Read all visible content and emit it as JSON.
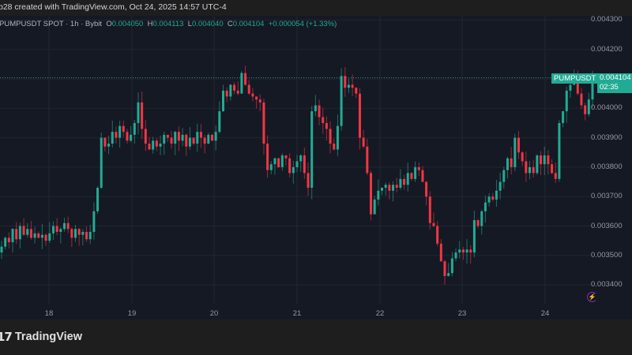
{
  "header": {
    "created_text": "b28 created with TradingView.com, Oct 24, 2025 14:57 UTC-4"
  },
  "legend": {
    "symbol_line": "PUMPUSDT SPOT · 1h · Bybit",
    "o_label": "O",
    "o_value": "0.004050",
    "h_label": "H",
    "h_value": "0.004113",
    "l_label": "L",
    "l_value": "0.004040",
    "c_label": "C",
    "c_value": "0.004104",
    "change": "+0.000054 (+1.33%)"
  },
  "price_tag": {
    "symbol": "PUMPUSDT",
    "price": "0.004104",
    "countdown": "02:35"
  },
  "footer": {
    "logo_mark": "17",
    "logo_text": "TradingView"
  },
  "colors": {
    "background": "#151924",
    "up": "#22ab94",
    "down": "#f23645",
    "grid": "#222631",
    "axis_text": "#9598a1",
    "accent_purple": "#9c27b0"
  },
  "chart_data": {
    "type": "candlestick",
    "title": "PUMPUSDT SPOT · 1h · Bybit",
    "xlabel": "",
    "ylabel": "",
    "x_ticks": [
      "18",
      "19",
      "20",
      "21",
      "22",
      "23",
      "24"
    ],
    "y_ticks": [
      "0.004300",
      "0.004200",
      "0.004100",
      "0.004000",
      "0.003900",
      "0.003800",
      "0.003700",
      "0.003600",
      "0.003500",
      "0.003400"
    ],
    "ylim": [
      0.00331,
      0.00436
    ],
    "grid": true,
    "last_price": 0.004104,
    "closes_approx": [
      0.00353,
      0.00356,
      0.003545,
      0.00359,
      0.003555,
      0.0036,
      0.00357,
      0.00359,
      0.00356,
      0.003575,
      0.00356,
      0.00357,
      0.00355,
      0.003575,
      0.0036,
      0.00358,
      0.00359,
      0.00361,
      0.00359,
      0.00356,
      0.00359,
      0.00357,
      0.00358,
      0.003555,
      0.00358,
      0.00365,
      0.00373,
      0.0039,
      0.00387,
      0.00388,
      0.00392,
      0.0039,
      0.00394,
      0.00392,
      0.00389,
      0.00391,
      0.00395,
      0.00402,
      0.00393,
      0.00388,
      0.00386,
      0.00389,
      0.00387,
      0.00388,
      0.00391,
      0.0039,
      0.00388,
      0.00392,
      0.00389,
      0.00391,
      0.00387,
      0.0039,
      0.00388,
      0.00392,
      0.0039,
      0.00388,
      0.00391,
      0.00389,
      0.00392,
      0.00399,
      0.00406,
      0.00404,
      0.00408,
      0.00406,
      0.00405,
      0.00412,
      0.00408,
      0.00405,
      0.00404,
      0.00403,
      0.00402,
      0.00388,
      0.00379,
      0.00381,
      0.00383,
      0.0038,
      0.00384,
      0.00383,
      0.00378,
      0.0038,
      0.00382,
      0.00384,
      0.00378,
      0.00373,
      0.00399,
      0.00401,
      0.00397,
      0.00395,
      0.00393,
      0.00388,
      0.00386,
      0.00394,
      0.00411,
      0.00407,
      0.00408,
      0.00407,
      0.00405,
      0.0039,
      0.00387,
      0.00378,
      0.00364,
      0.00369,
      0.00372,
      0.00373,
      0.00374,
      0.00372,
      0.00374,
      0.00373,
      0.00376,
      0.00374,
      0.00378,
      0.00376,
      0.0038,
      0.00379,
      0.00375,
      0.0037,
      0.00361,
      0.0036,
      0.00354,
      0.00348,
      0.00343,
      0.00344,
      0.00349,
      0.00351,
      0.00352,
      0.00351,
      0.00352,
      0.00351,
      0.00362,
      0.0036,
      0.00365,
      0.00368,
      0.0037,
      0.00369,
      0.00372,
      0.00375,
      0.00379,
      0.00383,
      0.0038,
      0.0039,
      0.00385,
      0.00382,
      0.00378,
      0.0038,
      0.00378,
      0.00384,
      0.00381,
      0.00384,
      0.00381,
      0.00378,
      0.00376,
      0.00395,
      0.00399,
      0.00406,
      0.00408,
      0.00411,
      0.00405,
      0.00401,
      0.00398,
      0.00403,
      0.004104
    ]
  }
}
